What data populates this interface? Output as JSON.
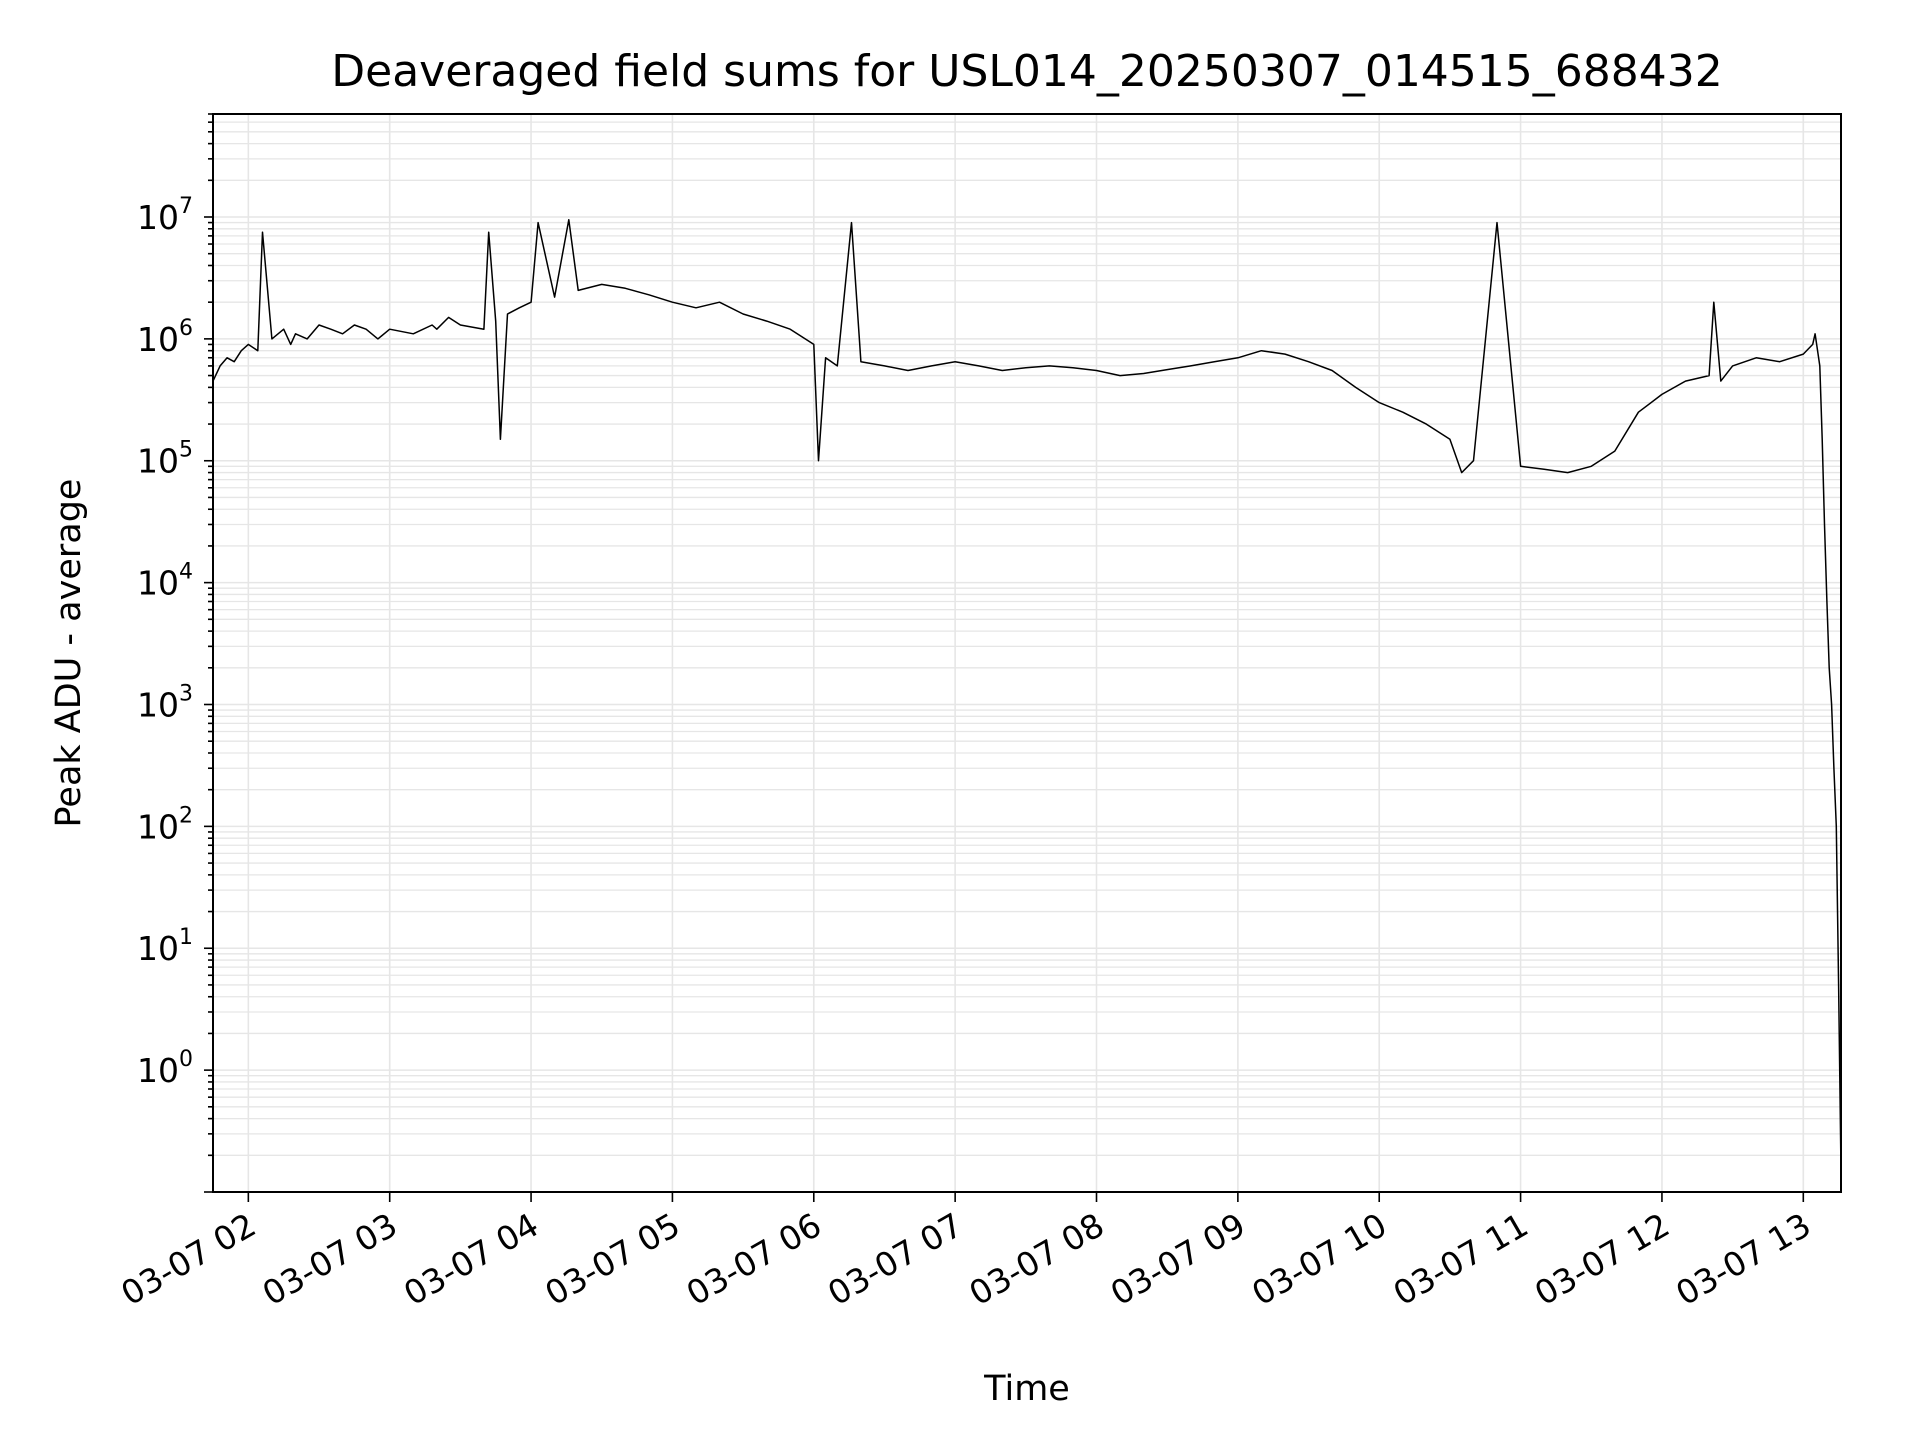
{
  "chart_data": {
    "type": "line",
    "title": "Deaveraged field sums for USL014_20250307_014515_688432",
    "xlabel": "Time",
    "ylabel": "Peak ADU - average",
    "yscale": "log",
    "ylim": [
      0.1,
      70000000
    ],
    "xlim": [
      "03-07 01:45",
      "03-07 13:16"
    ],
    "grid": true,
    "line_color": "#000000",
    "grid_color": "#e6e6e6",
    "x_ticks": [
      {
        "label": "03-07 02",
        "value": "03-07 02:00"
      },
      {
        "label": "03-07 03",
        "value": "03-07 03:00"
      },
      {
        "label": "03-07 04",
        "value": "03-07 04:00"
      },
      {
        "label": "03-07 05",
        "value": "03-07 05:00"
      },
      {
        "label": "03-07 06",
        "value": "03-07 06:00"
      },
      {
        "label": "03-07 07",
        "value": "03-07 07:00"
      },
      {
        "label": "03-07 08",
        "value": "03-07 08:00"
      },
      {
        "label": "03-07 09",
        "value": "03-07 09:00"
      },
      {
        "label": "03-07 10",
        "value": "03-07 10:00"
      },
      {
        "label": "03-07 11",
        "value": "03-07 11:00"
      },
      {
        "label": "03-07 12",
        "value": "03-07 12:00"
      },
      {
        "label": "03-07 13",
        "value": "03-07 13:00"
      }
    ],
    "y_ticks": [
      {
        "base": "10",
        "exp": "0",
        "value": 1
      },
      {
        "base": "10",
        "exp": "1",
        "value": 10
      },
      {
        "base": "10",
        "exp": "2",
        "value": 100
      },
      {
        "base": "10",
        "exp": "3",
        "value": 1000
      },
      {
        "base": "10",
        "exp": "4",
        "value": 10000
      },
      {
        "base": "10",
        "exp": "5",
        "value": 100000
      },
      {
        "base": "10",
        "exp": "6",
        "value": 1000000
      },
      {
        "base": "10",
        "exp": "7",
        "value": 10000000
      }
    ],
    "series": [
      {
        "x": [
          "03-07 01:45",
          "03-07 01:48",
          "03-07 01:51",
          "03-07 01:54",
          "03-07 01:57",
          "03-07 02:00",
          "03-07 02:04",
          "03-07 02:06",
          "03-07 02:10",
          "03-07 02:15",
          "03-07 02:18",
          "03-07 02:20",
          "03-07 02:25",
          "03-07 02:30",
          "03-07 02:35",
          "03-07 02:40",
          "03-07 02:45",
          "03-07 02:50",
          "03-07 02:55",
          "03-07 03:00",
          "03-07 03:10",
          "03-07 03:18",
          "03-07 03:20",
          "03-07 03:25",
          "03-07 03:30",
          "03-07 03:40",
          "03-07 03:42",
          "03-07 03:45",
          "03-07 03:47",
          "03-07 03:50",
          "03-07 03:55",
          "03-07 04:00",
          "03-07 04:03",
          "03-07 04:10",
          "03-07 04:16",
          "03-07 04:20",
          "03-07 04:30",
          "03-07 04:40",
          "03-07 04:50",
          "03-07 05:00",
          "03-07 05:10",
          "03-07 05:20",
          "03-07 05:30",
          "03-07 05:40",
          "03-07 05:50",
          "03-07 06:00",
          "03-07 06:02",
          "03-07 06:05",
          "03-07 06:10",
          "03-07 06:16",
          "03-07 06:20",
          "03-07 06:30",
          "03-07 06:40",
          "03-07 06:50",
          "03-07 07:00",
          "03-07 07:10",
          "03-07 07:20",
          "03-07 07:30",
          "03-07 07:40",
          "03-07 07:50",
          "03-07 08:00",
          "03-07 08:10",
          "03-07 08:20",
          "03-07 08:30",
          "03-07 08:40",
          "03-07 08:50",
          "03-07 09:00",
          "03-07 09:10",
          "03-07 09:20",
          "03-07 09:30",
          "03-07 09:40",
          "03-07 09:50",
          "03-07 10:00",
          "03-07 10:10",
          "03-07 10:20",
          "03-07 10:30",
          "03-07 10:35",
          "03-07 10:40",
          "03-07 10:50",
          "03-07 11:00",
          "03-07 11:10",
          "03-07 11:20",
          "03-07 11:30",
          "03-07 11:40",
          "03-07 11:50",
          "03-07 12:00",
          "03-07 12:10",
          "03-07 12:20",
          "03-07 12:22",
          "03-07 12:25",
          "03-07 12:30",
          "03-07 12:40",
          "03-07 12:50",
          "03-07 13:00",
          "03-07 13:04",
          "03-07 13:05",
          "03-07 13:07",
          "03-07 13:08",
          "03-07 13:09",
          "03-07 13:10",
          "03-07 13:11",
          "03-07 13:12",
          "03-07 13:13",
          "03-07 13:14",
          "03-07 13:15",
          "03-07 13:16"
        ],
        "y": [
          450000,
          600000,
          700000,
          650000,
          800000,
          900000,
          800000,
          7500000,
          1000000,
          1200000,
          900000,
          1100000,
          1000000,
          1300000,
          1200000,
          1100000,
          1300000,
          1200000,
          1000000,
          1200000,
          1100000,
          1300000,
          1200000,
          1500000,
          1300000,
          1200000,
          7500000,
          1400000,
          150000,
          1600000,
          1800000,
          2000000,
          9000000,
          2200000,
          9500000,
          2500000,
          2800000,
          2600000,
          2300000,
          2000000,
          1800000,
          2000000,
          1600000,
          1400000,
          1200000,
          900000,
          100000,
          700000,
          600000,
          9000000,
          650000,
          600000,
          550000,
          600000,
          650000,
          600000,
          550000,
          580000,
          600000,
          580000,
          550000,
          500000,
          520000,
          560000,
          600000,
          650000,
          700000,
          800000,
          750000,
          650000,
          550000,
          400000,
          300000,
          250000,
          200000,
          150000,
          80000,
          100000,
          9000000,
          90000,
          85000,
          80000,
          90000,
          120000,
          250000,
          350000,
          450000,
          500000,
          2000000,
          450000,
          600000,
          700000,
          650000,
          750000,
          900000,
          1100000,
          600000,
          150000,
          30000,
          7000,
          2000,
          1000,
          300,
          100,
          5,
          0.15
        ]
      }
    ]
  }
}
